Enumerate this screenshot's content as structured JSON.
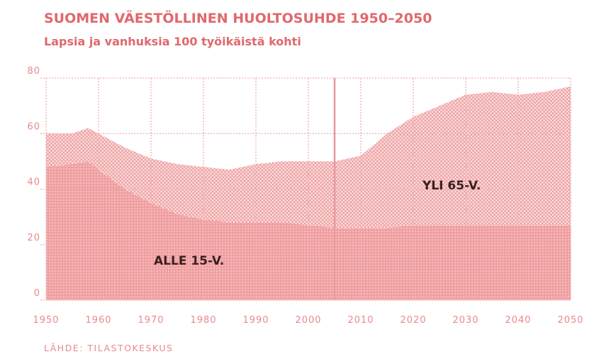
{
  "chart_data": {
    "type": "stacked_area",
    "title": "SUOMEN VÄESTÖLLINEN HUOLTOSUHDE 1950–2050",
    "subtitle": "Lapsia ja vanhuksia 100 työikäistä kohti",
    "source": "LÄHDE: TILASTOKESKUS",
    "x": [
      1950,
      1955,
      1958,
      1960,
      1965,
      1970,
      1975,
      1980,
      1985,
      1990,
      1995,
      2000,
      2005,
      2010,
      2015,
      2020,
      2025,
      2030,
      2035,
      2040,
      2045,
      2050
    ],
    "series": [
      {
        "name": "ALLE 15-V.",
        "color": "#f2a6a8",
        "values": [
          48,
          49,
          50,
          47,
          40,
          35,
          31,
          29,
          28,
          28,
          28,
          27,
          26,
          26,
          26,
          27,
          27,
          27,
          27,
          27,
          27,
          27
        ]
      },
      {
        "name": "YLI 65-V.",
        "color": "#f6c4c5",
        "values": [
          12,
          11,
          12,
          13,
          15,
          16,
          18,
          19,
          19,
          21,
          22,
          23,
          24,
          26,
          34,
          39,
          43,
          47,
          48,
          47,
          48,
          50
        ]
      }
    ],
    "xlim": [
      1950,
      2050
    ],
    "xticks": [
      1950,
      1960,
      1970,
      1980,
      1990,
      2000,
      2010,
      2020,
      2030,
      2040,
      2050
    ],
    "ylim": [
      0,
      80
    ],
    "yticks": [
      0,
      20,
      40,
      60,
      80
    ],
    "vline": 2005,
    "grid": true
  }
}
